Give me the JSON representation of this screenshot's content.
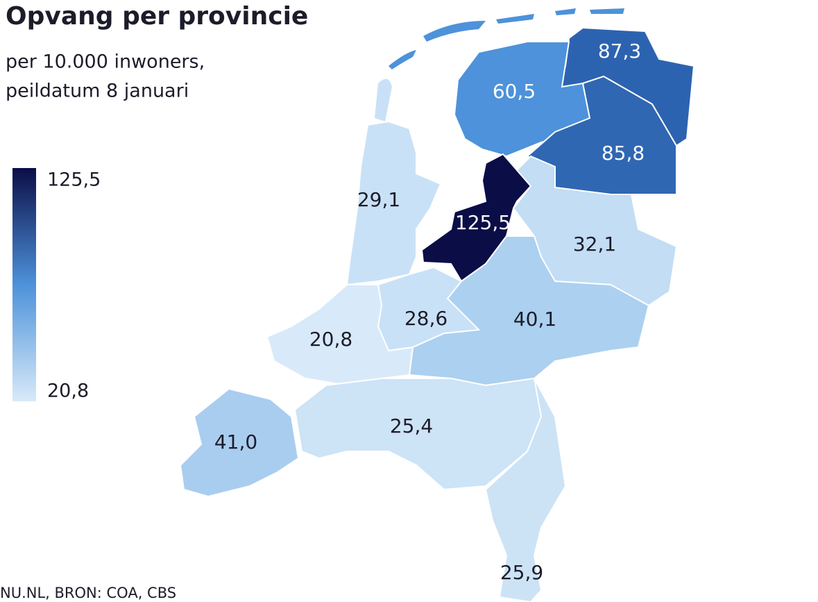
{
  "chart_data": {
    "type": "choropleth",
    "title": "Opvang per provincie",
    "subtitle": [
      "per 10.000 inwoners,",
      "peildatum 8 januari"
    ],
    "source": "NU.NL, BRON: COA, CBS",
    "values": [
      87.3,
      60.5,
      85.8,
      125.5,
      29.1,
      32.1,
      40.1,
      28.6,
      20.8,
      41.0,
      25.4,
      25.9
    ],
    "value_labels": [
      "87,3",
      "60,5",
      "85,8",
      "125,5",
      "29,1",
      "32,1",
      "40,1",
      "28,6",
      "20,8",
      "41,0",
      "25,4",
      "25,9"
    ],
    "colors": [
      "#2c63b0",
      "#4d92da",
      "#2f67b3",
      "#0b0d47",
      "#c9e1f6",
      "#c2ddf4",
      "#acd0f0",
      "#c9e1f6",
      "#d8eaf9",
      "#a9cdef",
      "#cde3f6",
      "#cce3f6"
    ],
    "clim": [
      20.8,
      125.5
    ],
    "cticks": [
      {
        "value": 125.5,
        "label": "125,5"
      },
      {
        "value": 20.8,
        "label": "20,8"
      }
    ],
    "legend_colors": [
      "#0b0d47",
      "#4d92da",
      "#d8eaf9"
    ]
  }
}
